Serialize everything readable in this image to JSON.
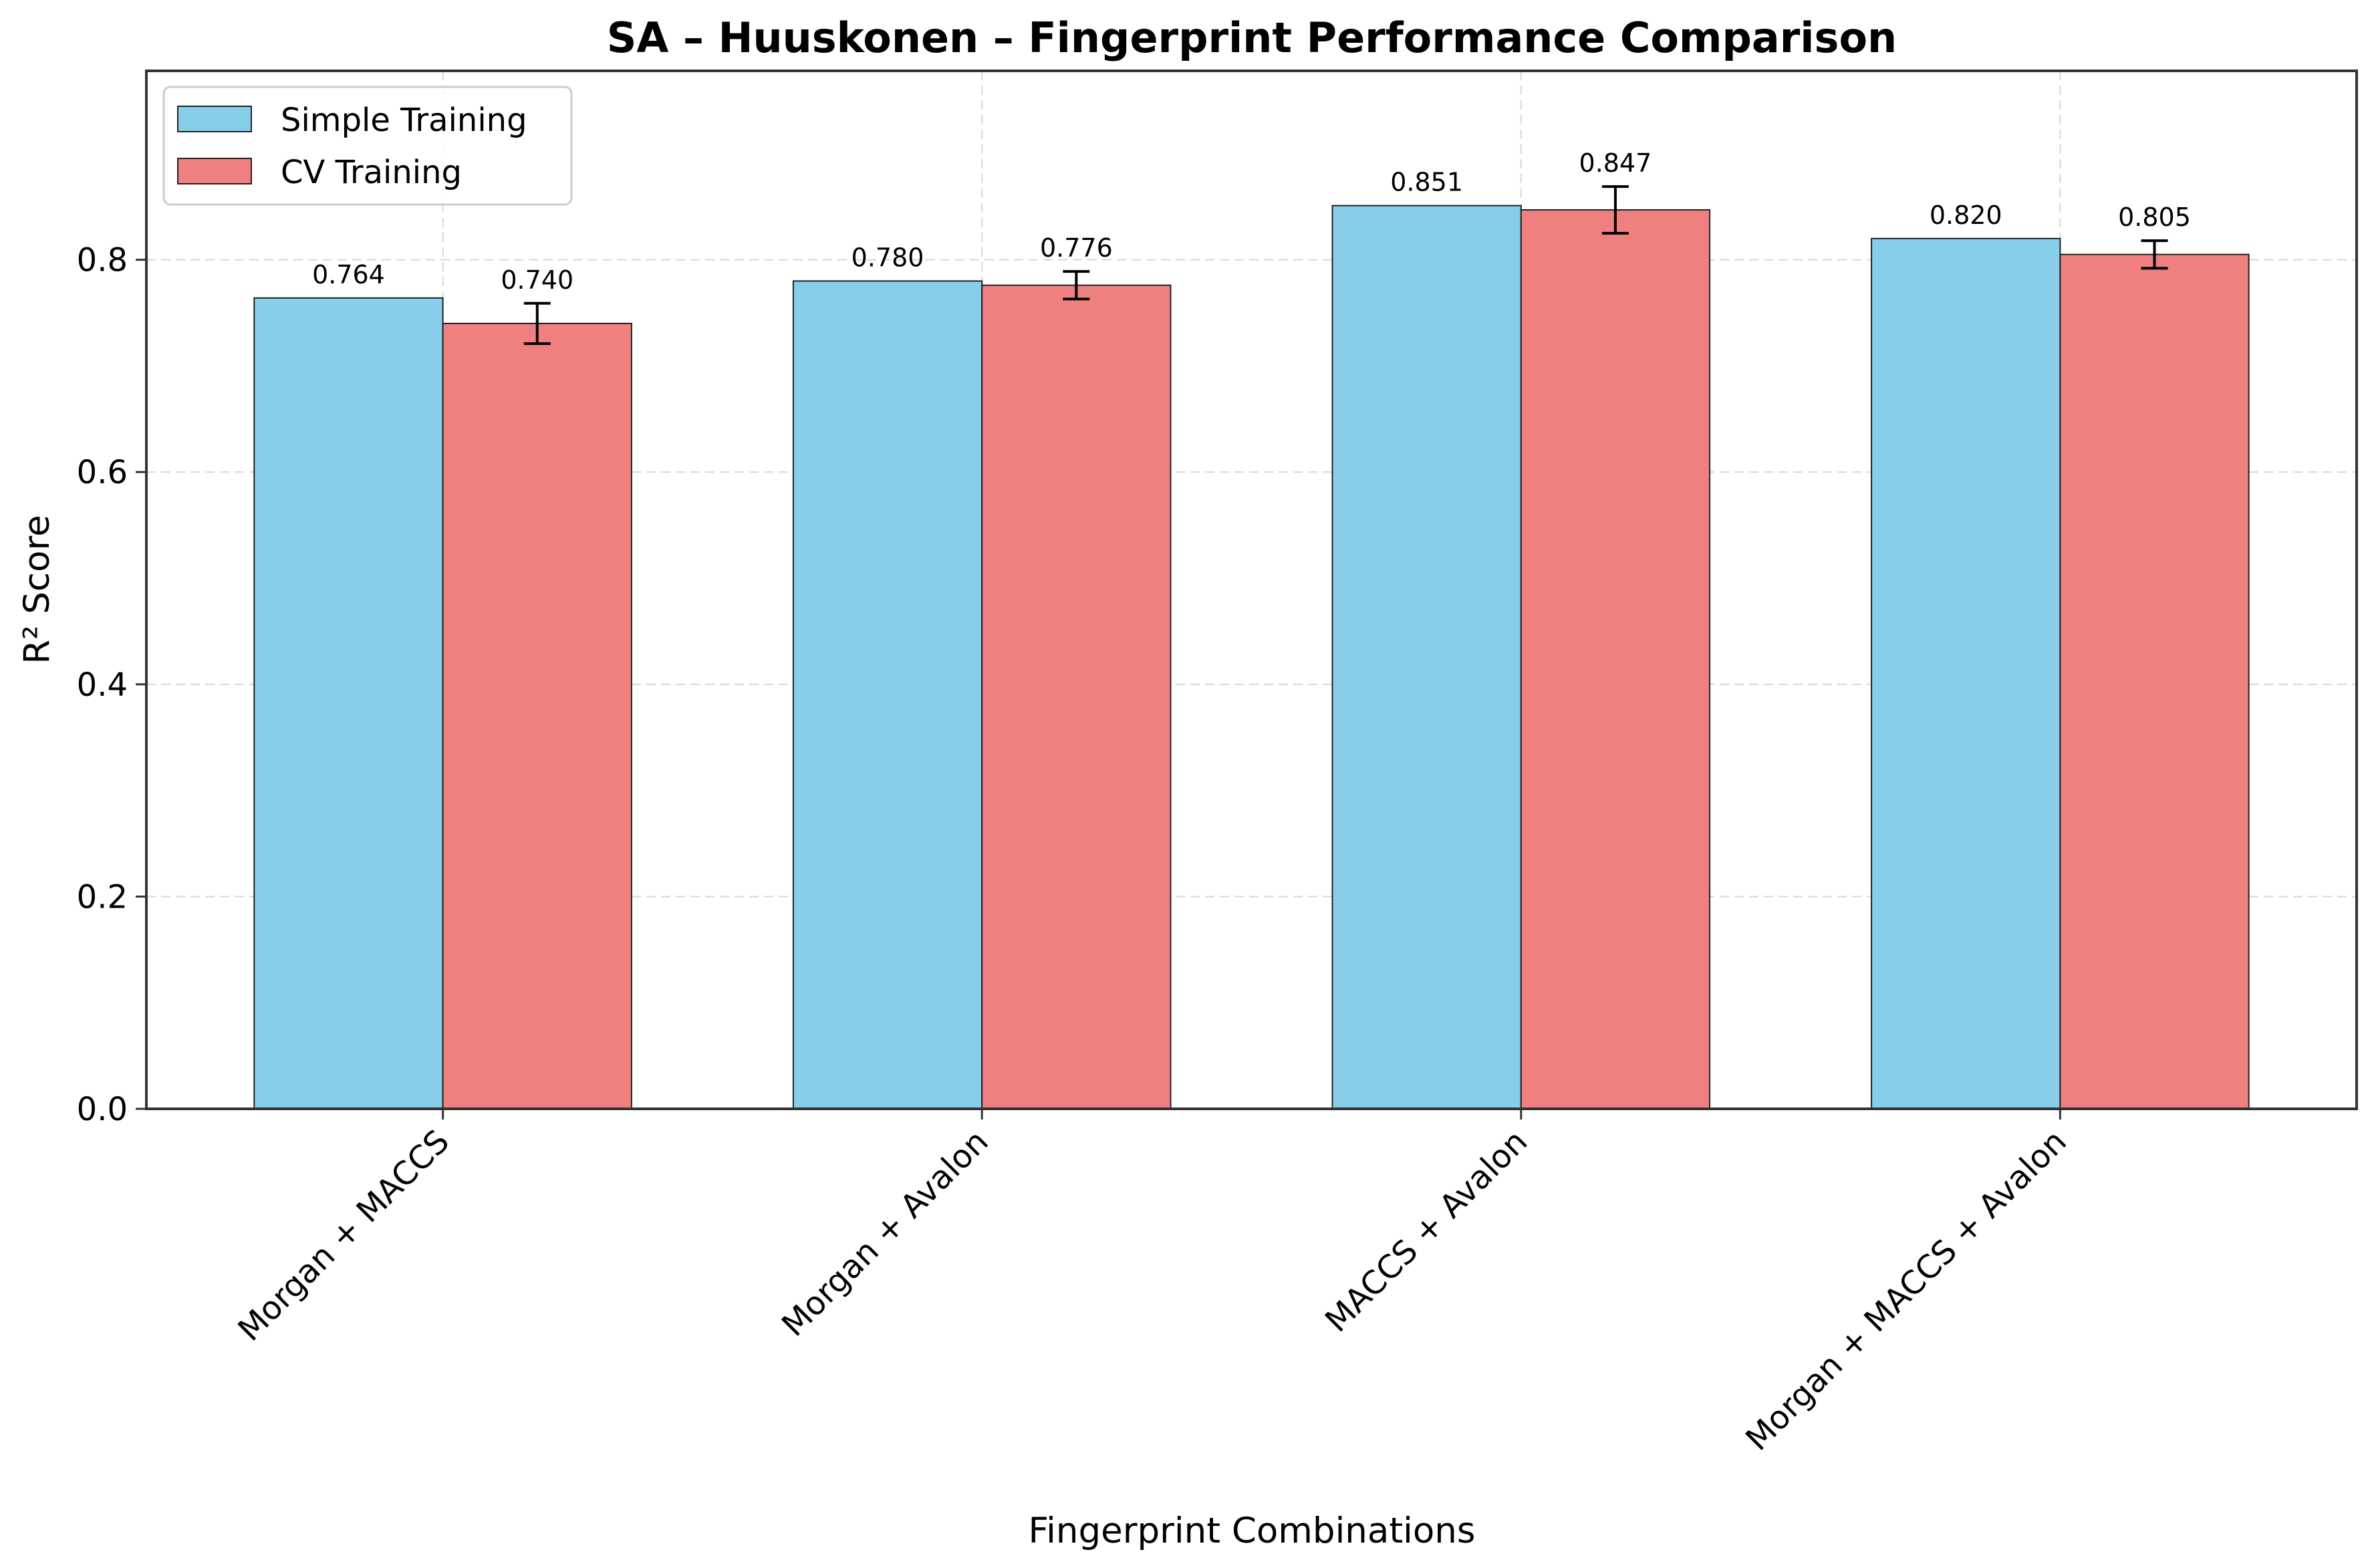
{
  "chart_data": {
    "type": "bar",
    "title": "SA – Huuskonen – Fingerprint Performance Comparison",
    "xlabel": "Fingerprint Combinations",
    "ylabel": "R² Score",
    "categories": [
      "Morgan + MACCS",
      "Morgan + Avalon",
      "MACCS + Avalon",
      "Morgan + MACCS + Avalon"
    ],
    "series": [
      {
        "name": "Simple Training",
        "color": "#87CEEB",
        "values": [
          0.764,
          0.78,
          0.851,
          0.82
        ],
        "labels": [
          "0.764",
          "0.780",
          "0.851",
          "0.820"
        ]
      },
      {
        "name": "CV Training",
        "color": "#F08080",
        "values": [
          0.74,
          0.776,
          0.847,
          0.805
        ],
        "errors": [
          0.019,
          0.013,
          0.022,
          0.013
        ],
        "labels": [
          "0.740",
          "0.776",
          "0.847",
          "0.805"
        ]
      }
    ],
    "ylim": [
      0,
      0.978
    ],
    "yticks": [
      0.0,
      0.2,
      0.4,
      0.6,
      0.8
    ],
    "ytick_labels": [
      "0.0",
      "0.2",
      "0.4",
      "0.6",
      "0.8"
    ],
    "grid": true,
    "legend_position": "top-left"
  }
}
